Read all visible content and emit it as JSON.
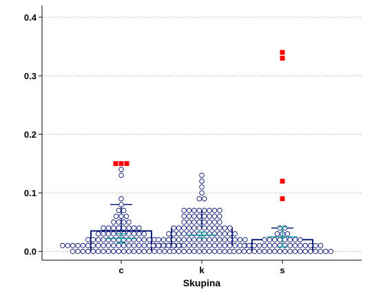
{
  "chart_data": {
    "type": "box",
    "xlabel": "Skupina",
    "ylabel": "",
    "ylim": [
      -0.015,
      0.42
    ],
    "yticks": [
      0.0,
      0.1,
      0.2,
      0.3,
      0.4
    ],
    "ytick_labels": [
      "0.0",
      "0.1",
      "0.2",
      "0.3",
      "0.4"
    ],
    "grid": "horizontal-dotted",
    "categories": [
      "c",
      "k",
      "s"
    ],
    "groups": [
      {
        "name": "c",
        "q1": 0.0,
        "median": 0.01,
        "q3": 0.035,
        "whisker_low": 0.0,
        "whisker_high": 0.08,
        "mean": 0.022,
        "ci": [
          0.015,
          0.03
        ],
        "points": [
          {
            "y": 0.0,
            "n": 20
          },
          {
            "y": 0.01,
            "n": 24
          },
          {
            "y": 0.02,
            "n": 14
          },
          {
            "y": 0.03,
            "n": 10
          },
          {
            "y": 0.04,
            "n": 8
          },
          {
            "y": 0.05,
            "n": 4
          },
          {
            "y": 0.06,
            "n": 3
          },
          {
            "y": 0.07,
            "n": 2
          },
          {
            "y": 0.08,
            "n": 1
          },
          {
            "y": 0.09,
            "n": 1
          },
          {
            "y": 0.13,
            "n": 1
          },
          {
            "y": 0.14,
            "n": 1
          }
        ],
        "outliers": [
          0.15,
          0.15,
          0.15
        ]
      },
      {
        "name": "k",
        "q1": 0.01,
        "median": 0.02,
        "q3": 0.04,
        "whisker_low": 0.0,
        "whisker_high": 0.07,
        "mean": 0.028,
        "ci": [
          0.023,
          0.033
        ],
        "points": [
          {
            "y": 0.0,
            "n": 12
          },
          {
            "y": 0.01,
            "n": 20
          },
          {
            "y": 0.02,
            "n": 18
          },
          {
            "y": 0.03,
            "n": 14
          },
          {
            "y": 0.04,
            "n": 12
          },
          {
            "y": 0.05,
            "n": 8
          },
          {
            "y": 0.06,
            "n": 8
          },
          {
            "y": 0.07,
            "n": 8
          },
          {
            "y": 0.09,
            "n": 2
          },
          {
            "y": 0.1,
            "n": 1
          },
          {
            "y": 0.11,
            "n": 1
          },
          {
            "y": 0.12,
            "n": 1
          },
          {
            "y": 0.13,
            "n": 1
          }
        ],
        "outliers": []
      },
      {
        "name": "s",
        "q1": 0.0,
        "median": 0.01,
        "q3": 0.02,
        "whisker_low": 0.0,
        "whisker_high": 0.04,
        "mean": 0.025,
        "ci": [
          0.008,
          0.042
        ],
        "points": [
          {
            "y": 0.0,
            "n": 20
          },
          {
            "y": 0.01,
            "n": 16
          },
          {
            "y": 0.02,
            "n": 8
          },
          {
            "y": 0.03,
            "n": 3
          },
          {
            "y": 0.04,
            "n": 2
          }
        ],
        "outliers": [
          0.09,
          0.12,
          0.33,
          0.34
        ]
      }
    ]
  },
  "colors": {
    "box": "#0a1a78",
    "point_stroke": "#1a237e",
    "mean_ci": "#1aa3a3",
    "outlier": "#ff0000",
    "grid": "#9a9a9a",
    "axis": "#000000"
  }
}
